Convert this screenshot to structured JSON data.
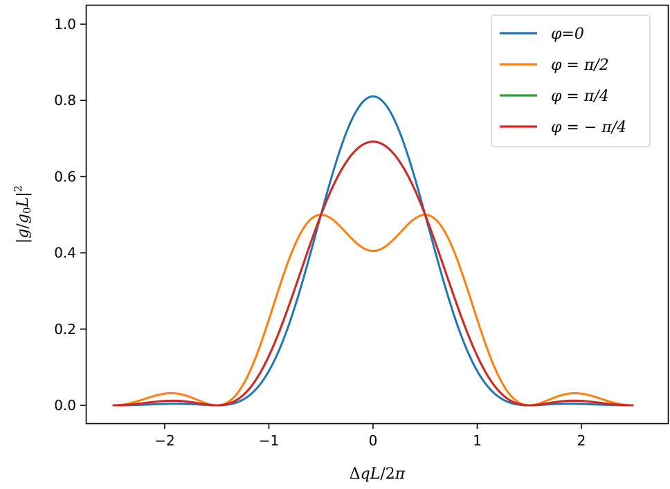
{
  "chart_data": {
    "type": "line",
    "xlabel": "ΔqL/2π",
    "ylabel": "|g/g₀L|²",
    "xlim": [
      -2.5,
      2.5
    ],
    "ylim": [
      0.0,
      1.0
    ],
    "x_ticks": [
      -2,
      -1,
      0,
      1,
      2
    ],
    "x_tick_labels": [
      "−2",
      "−1",
      "0",
      "1",
      "2"
    ],
    "y_ticks": [
      0.0,
      0.2,
      0.4,
      0.6,
      0.8,
      1.0
    ],
    "y_tick_labels": [
      "0.0",
      "0.2",
      "0.4",
      "0.6",
      "0.8",
      "1.0"
    ],
    "grid": false,
    "legend_position": "top-right",
    "series": [
      {
        "name": "φ=0",
        "color": "#1f77b4",
        "phi": 0
      },
      {
        "name": "φ = π/2",
        "color": "#ff7f0e",
        "phi": 1.5707963
      },
      {
        "name": "φ = π/4",
        "color": "#2ca02c",
        "phi": 0.7853982
      },
      {
        "name": "φ = − π/4",
        "color": "#d62728",
        "phi": -0.7853982
      }
    ]
  }
}
